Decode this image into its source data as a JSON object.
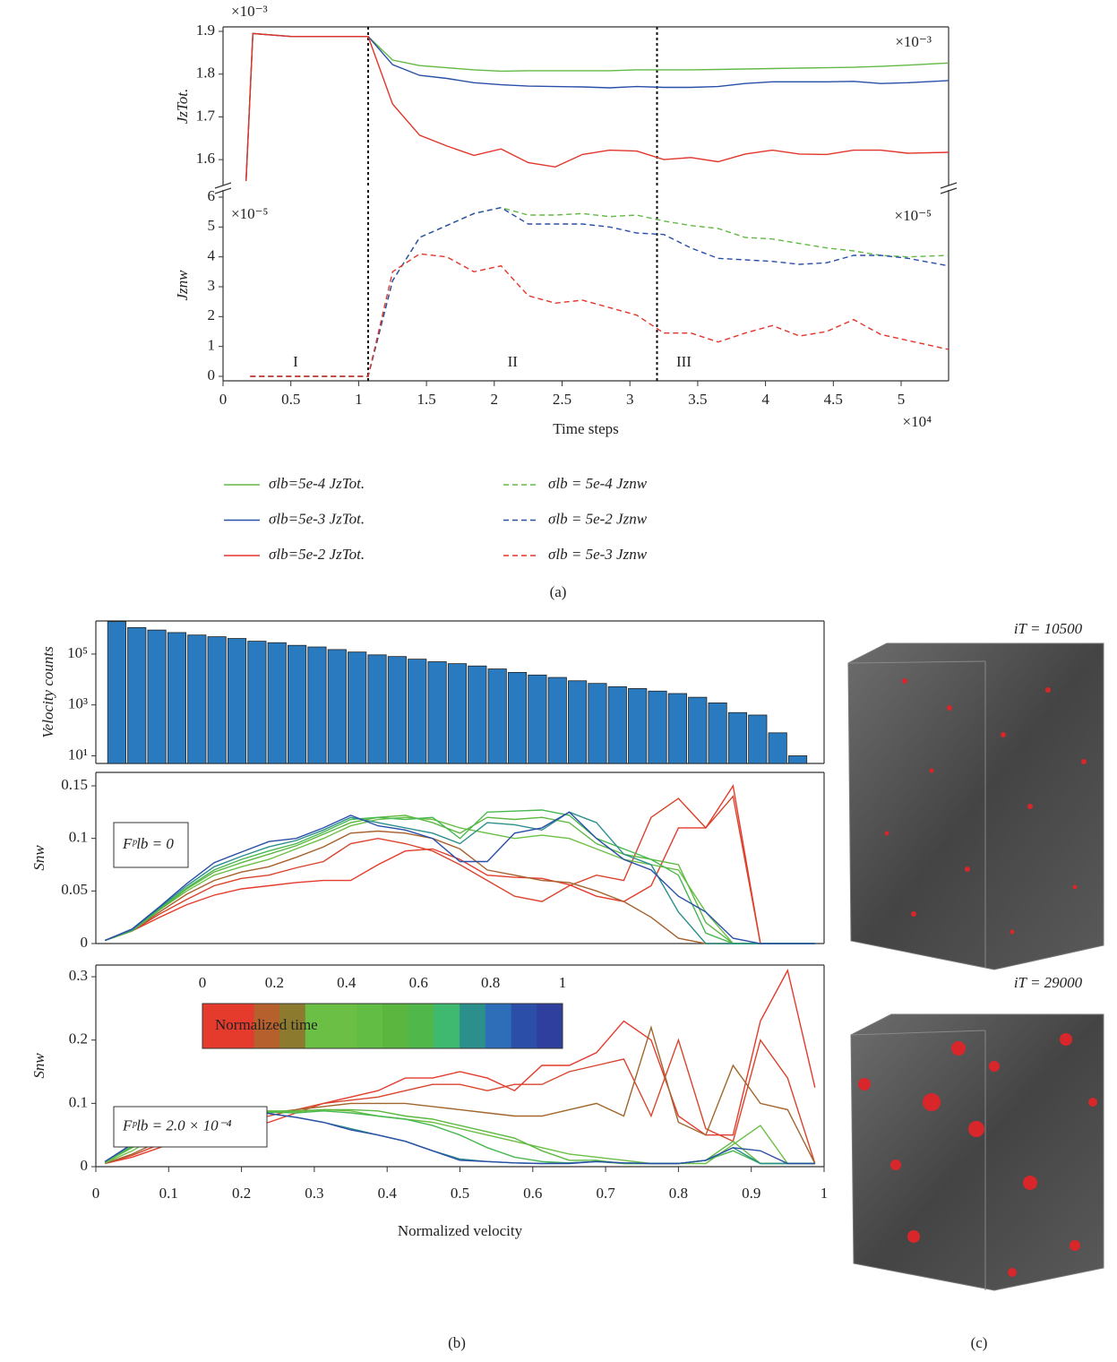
{
  "chart_data": [
    {
      "type": "line",
      "ylabel": "JzTot.",
      "multiplier": "×10⁻³",
      "multiplier_right": "×10⁻³",
      "xlim": [
        0,
        5.35
      ],
      "ylim": [
        1.55,
        1.9
      ],
      "yticks": [
        1.6,
        1.7,
        1.8,
        1.9
      ],
      "vlines": [
        1.07,
        3.2
      ],
      "x": [
        0.17,
        0.22,
        0.5,
        1.07,
        1.25,
        1.45,
        1.65,
        1.85,
        2.05,
        2.25,
        2.45,
        2.65,
        2.85,
        3.05,
        3.25,
        3.45,
        3.65,
        3.85,
        4.05,
        4.25,
        4.45,
        4.65,
        4.85,
        5.05,
        5.35
      ],
      "series": [
        {
          "name": "σlb=5e-4 JzTot.",
          "color": "#63b945",
          "values": [
            1.55,
            1.895,
            1.888,
            1.888,
            1.833,
            1.82,
            1.815,
            1.81,
            1.807,
            1.808,
            1.808,
            1.808,
            1.808,
            1.81,
            1.81,
            1.81,
            1.811,
            1.812,
            1.813,
            1.814,
            1.815,
            1.816,
            1.818,
            1.821,
            1.826
          ]
        },
        {
          "name": "σlb=5e-3 JzTot.",
          "color": "#2a4fa8",
          "values": [
            1.55,
            1.895,
            1.888,
            1.888,
            1.822,
            1.797,
            1.79,
            1.78,
            1.775,
            1.772,
            1.771,
            1.77,
            1.768,
            1.771,
            1.769,
            1.769,
            1.771,
            1.778,
            1.782,
            1.782,
            1.782,
            1.783,
            1.778,
            1.78,
            1.785
          ]
        },
        {
          "name": "σlb=5e-2 JzTot.",
          "color": "#e2352b",
          "values": [
            1.55,
            1.895,
            1.888,
            1.888,
            1.73,
            1.657,
            1.632,
            1.61,
            1.625,
            1.593,
            1.583,
            1.612,
            1.622,
            1.62,
            1.6,
            1.605,
            1.595,
            1.613,
            1.622,
            1.613,
            1.612,
            1.622,
            1.622,
            1.615,
            1.617
          ]
        }
      ]
    },
    {
      "type": "line",
      "ylabel": "Jznw",
      "xlabel": "Time steps",
      "multiplier": "×10⁻⁵",
      "multiplier_right": "×10⁻⁵",
      "x_multiplier": "×10⁴",
      "linestyle": "dashed",
      "xlim": [
        0,
        5.35
      ],
      "xticks": [
        0,
        0.5,
        1,
        1.5,
        2,
        2.5,
        3,
        3.5,
        4,
        4.5,
        5
      ],
      "ylim": [
        0,
        6
      ],
      "yticks": [
        0,
        1,
        2,
        3,
        4,
        5,
        6
      ],
      "vlines": [
        1.07,
        3.2
      ],
      "regions": [
        "I",
        "II",
        "III"
      ],
      "x": [
        0.2,
        0.5,
        1.07,
        1.25,
        1.45,
        1.65,
        1.85,
        2.05,
        2.25,
        2.45,
        2.65,
        2.85,
        3.05,
        3.25,
        3.45,
        3.65,
        3.85,
        4.05,
        4.25,
        4.45,
        4.65,
        4.85,
        5.05,
        5.35
      ],
      "series": [
        {
          "name": "σlb = 5e-4 Jznw",
          "color": "#63b945",
          "values": [
            0,
            0,
            0,
            3.2,
            4.65,
            5.05,
            5.45,
            5.65,
            5.4,
            5.4,
            5.45,
            5.35,
            5.4,
            5.2,
            5.05,
            4.95,
            4.65,
            4.6,
            4.45,
            4.3,
            4.2,
            4.05,
            4.0,
            4.05
          ]
        },
        {
          "name": "σlb = 5e-2 Jznw",
          "color": "#2a4fa8",
          "values": [
            0,
            0,
            0,
            3.2,
            4.65,
            5.05,
            5.45,
            5.65,
            5.1,
            5.1,
            5.1,
            5.0,
            4.8,
            4.75,
            4.3,
            3.95,
            3.9,
            3.85,
            3.75,
            3.8,
            4.05,
            4.05,
            3.95,
            3.7
          ]
        },
        {
          "name": "σlb = 5e-3 Jznw",
          "color": "#e2352b",
          "values": [
            0,
            0,
            0,
            3.5,
            4.1,
            4.0,
            3.5,
            3.7,
            2.7,
            2.45,
            2.55,
            2.3,
            2.05,
            1.45,
            1.45,
            1.15,
            1.45,
            1.7,
            1.35,
            1.5,
            1.9,
            1.4,
            1.2,
            0.9
          ]
        }
      ]
    },
    {
      "type": "histogram",
      "ylabel": "Velocity counts",
      "log_scale": true,
      "color": "#2a7abf",
      "xlim": [
        0,
        1
      ],
      "ylim": [
        5,
        2000000
      ],
      "yticks": [
        {
          "value": 10,
          "label": "10¹"
        },
        {
          "value": 1000,
          "label": "10³"
        },
        {
          "value": 100000,
          "label": "10⁵"
        }
      ],
      "bins": [
        0.015,
        0.0425,
        0.07,
        0.0975,
        0.125,
        0.1525,
        0.18,
        0.2075,
        0.235,
        0.2625,
        0.29,
        0.3175,
        0.345,
        0.3725,
        0.4,
        0.4275,
        0.455,
        0.4825,
        0.51,
        0.5375,
        0.565,
        0.5925,
        0.62,
        0.6475,
        0.675,
        0.7025,
        0.73,
        0.7575,
        0.785,
        0.8125,
        0.84,
        0.8675,
        0.895,
        0.9225,
        0.95,
        0.9775
      ],
      "counts": [
        1900000,
        1100000,
        880000,
        700000,
        560000,
        480000,
        410000,
        320000,
        280000,
        220000,
        190000,
        150000,
        120000,
        93000,
        80000,
        63000,
        50000,
        42000,
        34000,
        26000,
        19000,
        15000,
        12000,
        8900,
        7000,
        5200,
        4400,
        3500,
        2800,
        2000,
        1200,
        500,
        400,
        80,
        10
      ]
    },
    {
      "type": "line",
      "ylabel": "Snw",
      "annotation": "Fᵖlb = 0",
      "xlim": [
        0,
        1
      ],
      "ylim": [
        0,
        0.15
      ],
      "yticks": [
        0,
        0.05,
        0.1,
        0.15
      ],
      "x": [
        0.0125,
        0.05,
        0.0875,
        0.125,
        0.1625,
        0.2,
        0.2375,
        0.275,
        0.3125,
        0.35,
        0.3875,
        0.425,
        0.4625,
        0.5,
        0.5375,
        0.575,
        0.6125,
        0.65,
        0.6875,
        0.725,
        0.7625,
        0.8,
        0.8375,
        0.875,
        0.9125,
        0.95,
        0.9875
      ],
      "series": [
        {
          "color": "#e43b2c",
          "values": [
            0.003,
            0.012,
            0.025,
            0.037,
            0.046,
            0.052,
            0.055,
            0.058,
            0.06,
            0.06,
            0.075,
            0.088,
            0.09,
            0.08,
            0.065,
            0.063,
            0.062,
            0.056,
            0.045,
            0.04,
            0.055,
            0.11,
            0.11,
            0.15,
            0,
            0,
            0
          ]
        },
        {
          "color": "#d9442c",
          "values": [
            0.003,
            0.012,
            0.028,
            0.042,
            0.055,
            0.062,
            0.065,
            0.072,
            0.078,
            0.095,
            0.1,
            0.095,
            0.088,
            0.075,
            0.06,
            0.045,
            0.04,
            0.055,
            0.065,
            0.06,
            0.12,
            0.138,
            0.11,
            0.14,
            0,
            0,
            0
          ]
        },
        {
          "color": "#a8602d",
          "values": [
            0.003,
            0.012,
            0.03,
            0.047,
            0.06,
            0.068,
            0.073,
            0.082,
            0.092,
            0.105,
            0.107,
            0.105,
            0.1,
            0.09,
            0.07,
            0.065,
            0.06,
            0.058,
            0.05,
            0.04,
            0.025,
            0.005,
            0,
            0,
            0,
            0,
            0
          ]
        },
        {
          "color": "#6cbf45",
          "values": [
            0.003,
            0.012,
            0.032,
            0.05,
            0.065,
            0.073,
            0.08,
            0.09,
            0.1,
            0.112,
            0.118,
            0.12,
            0.118,
            0.11,
            0.105,
            0.1,
            0.103,
            0.1,
            0.09,
            0.08,
            0.075,
            0.07,
            0.03,
            0,
            0,
            0,
            0
          ]
        },
        {
          "color": "#5db840",
          "values": [
            0.003,
            0.012,
            0.032,
            0.052,
            0.068,
            0.077,
            0.085,
            0.093,
            0.104,
            0.115,
            0.12,
            0.122,
            0.115,
            0.105,
            0.12,
            0.118,
            0.12,
            0.115,
            0.095,
            0.085,
            0.08,
            0.075,
            0.02,
            0,
            0,
            0,
            0
          ]
        },
        {
          "color": "#48b850",
          "values": [
            0.003,
            0.013,
            0.033,
            0.053,
            0.07,
            0.08,
            0.088,
            0.095,
            0.106,
            0.118,
            0.12,
            0.118,
            0.12,
            0.1,
            0.125,
            0.126,
            0.127,
            0.122,
            0.1,
            0.09,
            0.08,
            0.065,
            0.01,
            0,
            0,
            0,
            0
          ]
        },
        {
          "color": "#2b8f8c",
          "values": [
            0.003,
            0.013,
            0.034,
            0.055,
            0.073,
            0.083,
            0.092,
            0.098,
            0.108,
            0.12,
            0.115,
            0.11,
            0.105,
            0.095,
            0.115,
            0.113,
            0.108,
            0.125,
            0.115,
            0.085,
            0.075,
            0.03,
            0,
            0,
            0,
            0,
            0
          ]
        },
        {
          "color": "#2b4ea8",
          "values": [
            0.003,
            0.014,
            0.035,
            0.057,
            0.077,
            0.087,
            0.097,
            0.1,
            0.11,
            0.122,
            0.112,
            0.108,
            0.1,
            0.078,
            0.078,
            0.105,
            0.11,
            0.125,
            0.1,
            0.08,
            0.07,
            0.045,
            0.03,
            0.005,
            0,
            0,
            0
          ]
        }
      ]
    },
    {
      "type": "line",
      "ylabel": "Snw",
      "annotation": "Fᵖlb = 2.0 × 10⁻⁴",
      "xlabel": "Normalized velocity",
      "xlim": [
        0,
        1
      ],
      "xticks": [
        0,
        0.1,
        0.2,
        0.3,
        0.4,
        0.5,
        0.6,
        0.7,
        0.8,
        0.9,
        1
      ],
      "ylim": [
        0,
        0.31
      ],
      "yticks": [
        0,
        0.1,
        0.2,
        0.3
      ],
      "colorbar": {
        "label": "Normalized time",
        "ticks": [
          0,
          0.2,
          0.4,
          0.6,
          0.8,
          1
        ],
        "colors": [
          "#e43b2c",
          "#e43b2c",
          "#b5602d",
          "#8c7a2f",
          "#6cbf45",
          "#6cbf45",
          "#62bd44",
          "#5ab63f",
          "#50b84a",
          "#3fb870",
          "#2b8f8c",
          "#2e6db8",
          "#2b4ea8",
          "#2e3f9e"
        ]
      },
      "x": [
        0.0125,
        0.05,
        0.0875,
        0.125,
        0.1625,
        0.2,
        0.2375,
        0.275,
        0.3125,
        0.35,
        0.3875,
        0.425,
        0.4625,
        0.5,
        0.5375,
        0.575,
        0.6125,
        0.65,
        0.6875,
        0.725,
        0.7625,
        0.8,
        0.8375,
        0.875,
        0.9125,
        0.95,
        0.9875
      ],
      "series": [
        {
          "color": "#e43b2c",
          "values": [
            0.005,
            0.015,
            0.03,
            0.045,
            0.055,
            0.06,
            0.07,
            0.085,
            0.1,
            0.11,
            0.12,
            0.14,
            0.14,
            0.15,
            0.14,
            0.12,
            0.16,
            0.16,
            0.18,
            0.23,
            0.2,
            0.08,
            0.05,
            0.05,
            0.23,
            0.31,
            0.125
          ]
        },
        {
          "color": "#d9442c",
          "values": [
            0.005,
            0.018,
            0.035,
            0.05,
            0.06,
            0.07,
            0.08,
            0.09,
            0.1,
            0.105,
            0.11,
            0.12,
            0.13,
            0.13,
            0.12,
            0.13,
            0.13,
            0.15,
            0.16,
            0.17,
            0.08,
            0.2,
            0.06,
            0.04,
            0.2,
            0.14,
            0.005
          ]
        },
        {
          "color": "#a0662d",
          "values": [
            0.005,
            0.02,
            0.04,
            0.06,
            0.075,
            0.082,
            0.085,
            0.09,
            0.095,
            0.1,
            0.1,
            0.1,
            0.095,
            0.09,
            0.085,
            0.08,
            0.08,
            0.09,
            0.1,
            0.08,
            0.22,
            0.07,
            0.05,
            0.16,
            0.1,
            0.09,
            0.005
          ]
        },
        {
          "color": "#6cbf45",
          "values": [
            0.006,
            0.025,
            0.05,
            0.07,
            0.08,
            0.085,
            0.086,
            0.087,
            0.09,
            0.088,
            0.08,
            0.075,
            0.07,
            0.06,
            0.05,
            0.04,
            0.03,
            0.02,
            0.015,
            0.01,
            0.005,
            0.005,
            0.005,
            0.035,
            0.065,
            0.005,
            0.005
          ]
        },
        {
          "color": "#5db840",
          "values": [
            0.007,
            0.03,
            0.055,
            0.075,
            0.085,
            0.088,
            0.088,
            0.088,
            0.09,
            0.09,
            0.088,
            0.08,
            0.075,
            0.065,
            0.055,
            0.045,
            0.025,
            0.01,
            0.01,
            0.005,
            0.005,
            0.005,
            0.01,
            0.04,
            0.005,
            0.005,
            0.005
          ]
        },
        {
          "color": "#48b850",
          "values": [
            0.008,
            0.032,
            0.058,
            0.078,
            0.087,
            0.088,
            0.086,
            0.085,
            0.088,
            0.085,
            0.08,
            0.075,
            0.065,
            0.05,
            0.03,
            0.015,
            0.008,
            0.006,
            0.008,
            0.005,
            0.005,
            0.005,
            0.01,
            0.025,
            0.005,
            0.005,
            0.005
          ]
        },
        {
          "color": "#2b8f8c",
          "values": [
            0.008,
            0.035,
            0.06,
            0.08,
            0.09,
            0.088,
            0.084,
            0.078,
            0.07,
            0.06,
            0.05,
            0.04,
            0.025,
            0.012,
            0.008,
            0.006,
            0.005,
            0.006,
            0.008,
            0.006,
            0.005,
            0.005,
            0.01,
            0.03,
            0.005,
            0.005,
            0.005
          ]
        },
        {
          "color": "#2b4ea8",
          "values": [
            0.008,
            0.036,
            0.062,
            0.082,
            0.092,
            0.09,
            0.084,
            0.078,
            0.07,
            0.058,
            0.05,
            0.04,
            0.025,
            0.01,
            0.008,
            0.006,
            0.005,
            0.005,
            0.008,
            0.006,
            0.005,
            0.005,
            0.01,
            0.03,
            0.025,
            0.005,
            0.005
          ]
        }
      ]
    }
  ],
  "images": [
    {
      "label": "iT = 10500"
    },
    {
      "label": "iT = 29000"
    }
  ],
  "captions": {
    "a": "(a)",
    "b": "(b)",
    "c": "(c)"
  }
}
